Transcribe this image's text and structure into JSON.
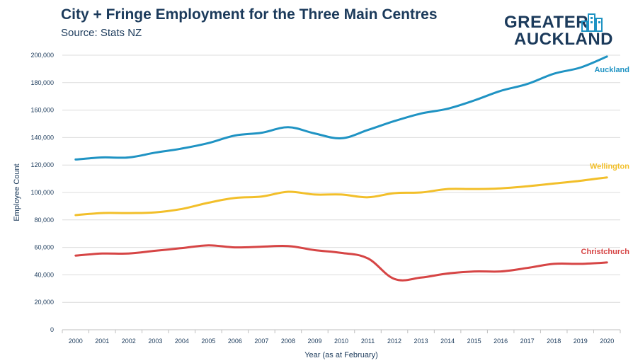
{
  "header": {
    "title": "City + Fringe Employment for the Three Main Centres",
    "subtitle": "Source: Stats NZ"
  },
  "logo": {
    "line1": "GREATER",
    "line2": "AUCKLAND",
    "icon": "city-skyline-icon"
  },
  "colors": {
    "title": "#1b3a5b",
    "grid": "#dcdcdc",
    "auckland": "#1f93c3",
    "wellington": "#f2bf2a",
    "christchurch": "#d64545"
  },
  "chart_data": {
    "type": "line",
    "title": "City + Fringe Employment for the Three Main Centres",
    "subtitle": "Source: Stats NZ",
    "xlabel": "Year (as at February)",
    "ylabel": "Employee Count",
    "x": [
      "2000",
      "2001",
      "2002",
      "2003",
      "2004",
      "2005",
      "2006",
      "2007",
      "2008",
      "2009",
      "2010",
      "2011",
      "2012",
      "2013",
      "2014",
      "2015",
      "2016",
      "2017",
      "2018",
      "2019",
      "2020"
    ],
    "ylim": [
      0,
      200000
    ],
    "yticks": [
      0,
      20000,
      40000,
      60000,
      80000,
      100000,
      120000,
      140000,
      160000,
      180000,
      200000
    ],
    "ytick_labels": [
      "0",
      "20,000",
      "40,000",
      "60,000",
      "80,000",
      "100,000",
      "120,000",
      "140,000",
      "160,000",
      "180,000",
      "200,000"
    ],
    "grid": "horizontal",
    "legend": "inline labels at line ends",
    "series": [
      {
        "name": "Auckland",
        "color": "#1f93c3",
        "values": [
          124000,
          125500,
          125500,
          129000,
          132000,
          136000,
          141500,
          143500,
          147500,
          143000,
          139500,
          145500,
          152000,
          157500,
          161000,
          167000,
          174000,
          179000,
          186500,
          191000,
          199000
        ]
      },
      {
        "name": "Wellington",
        "color": "#f2bf2a",
        "values": [
          83500,
          85000,
          85000,
          85500,
          88000,
          92500,
          96000,
          97000,
          100500,
          98500,
          98500,
          96500,
          99500,
          100000,
          102500,
          102500,
          103000,
          104500,
          106500,
          108500,
          111000
        ]
      },
      {
        "name": "Christchurch",
        "color": "#d64545",
        "values": [
          54000,
          55500,
          55500,
          57500,
          59500,
          61500,
          60000,
          60500,
          61000,
          58000,
          56000,
          52000,
          37000,
          38000,
          41000,
          42500,
          42500,
          45000,
          48000,
          48000,
          49000
        ]
      }
    ]
  }
}
